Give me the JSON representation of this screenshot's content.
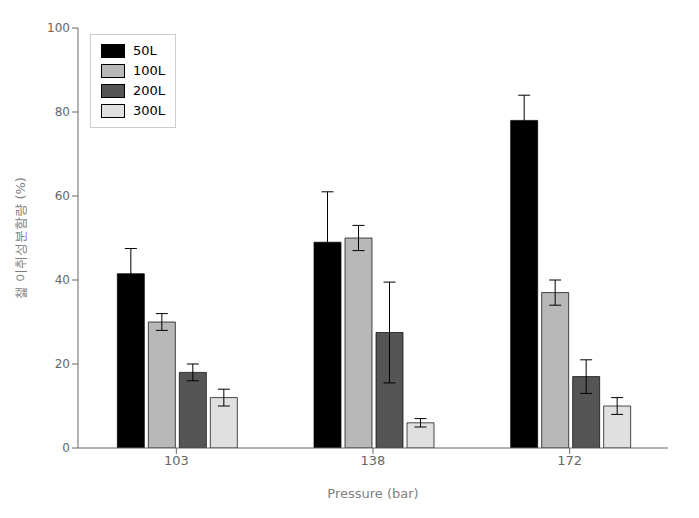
{
  "chart_data": {
    "type": "bar",
    "categories": [
      "103",
      "138",
      "172"
    ],
    "series": [
      {
        "name": "50L",
        "color": "#000000",
        "values": [
          41.5,
          49.0,
          78.0
        ],
        "errors": [
          6.0,
          12.0,
          6.0
        ]
      },
      {
        "name": "100L",
        "color": "#b8b8b8",
        "values": [
          30.0,
          50.0,
          37.0
        ],
        "errors": [
          2.0,
          3.0,
          3.0
        ]
      },
      {
        "name": "200L",
        "color": "#555555",
        "values": [
          18.0,
          27.5,
          17.0
        ],
        "errors": [
          2.0,
          12.0,
          4.0
        ]
      },
      {
        "name": "300L",
        "color": "#e0e0e0",
        "values": [
          12.0,
          6.0,
          10.0
        ],
        "errors": [
          2.0,
          1.0,
          2.0
        ]
      }
    ],
    "xlabel": "Pressure (bar)",
    "ylabel": "챑 이취성분함량 (%)",
    "ylim": [
      0,
      100
    ],
    "yticks": [
      0,
      20,
      40,
      60,
      80,
      100
    ],
    "legend": "upper left",
    "grid": false
  }
}
